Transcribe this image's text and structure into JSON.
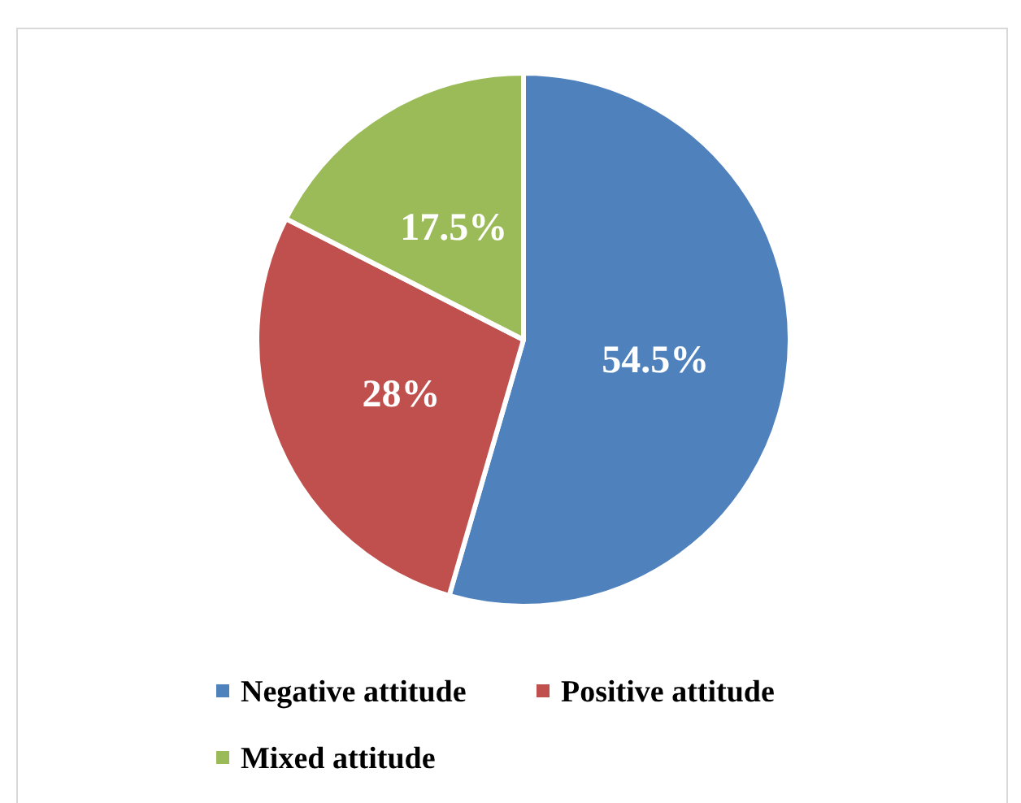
{
  "chart_data": {
    "type": "pie",
    "categories": [
      "Negative attitude",
      "Positive attitude",
      "Mixed attitude"
    ],
    "values": [
      54.5,
      28,
      17.5
    ],
    "colors": [
      "#4f81bd",
      "#c0504d",
      "#9bbb59"
    ],
    "value_labels": [
      "54.5%",
      "28%",
      "17.5%"
    ],
    "legend": "bottom"
  }
}
